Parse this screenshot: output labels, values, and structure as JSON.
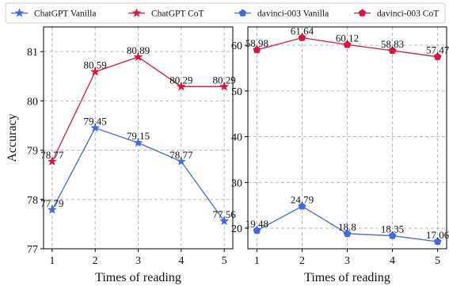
{
  "chart_data": [
    {
      "type": "line",
      "xlabel": "Times of reading",
      "ylabel": "Accuracy",
      "x": [
        1,
        2,
        3,
        4,
        5
      ],
      "ylim": [
        77,
        81.5
      ],
      "yticks": [
        77,
        78,
        79,
        80,
        81
      ],
      "grid": true,
      "series": [
        {
          "name": "ChatGPT Vanilla",
          "marker": "star",
          "color": "#4169E1",
          "values": [
            77.79,
            79.45,
            79.15,
            78.77,
            77.56
          ]
        },
        {
          "name": "ChatGPT CoT",
          "marker": "star",
          "color": "#DC143C",
          "values": [
            78.77,
            80.59,
            80.89,
            80.29,
            80.29
          ]
        }
      ]
    },
    {
      "type": "line",
      "xlabel": "Times of reading",
      "ylabel": "",
      "x": [
        1,
        2,
        3,
        4,
        5
      ],
      "ylim": [
        15.5,
        64
      ],
      "yticks": [
        20,
        30,
        40,
        50,
        60
      ],
      "grid": true,
      "series": [
        {
          "name": "davinci-003 Vanilla",
          "marker": "pentagon",
          "color": "#4169E1",
          "values": [
            19.48,
            24.79,
            18.8,
            18.35,
            17.06
          ]
        },
        {
          "name": "davinci-003 CoT",
          "marker": "pentagon",
          "color": "#DC143C",
          "values": [
            58.98,
            61.64,
            60.12,
            58.83,
            57.47
          ]
        }
      ]
    }
  ],
  "legend": {
    "placement": "top",
    "items": [
      {
        "label": "ChatGPT Vanilla",
        "marker": "star",
        "color": "#4169E1"
      },
      {
        "label": "ChatGPT CoT",
        "marker": "star",
        "color": "#DC143C"
      },
      {
        "label": "davinci-003 Vanilla",
        "marker": "pentagon",
        "color": "#4169E1"
      },
      {
        "label": "davinci-003 CoT",
        "marker": "pentagon",
        "color": "#DC143C"
      }
    ]
  }
}
